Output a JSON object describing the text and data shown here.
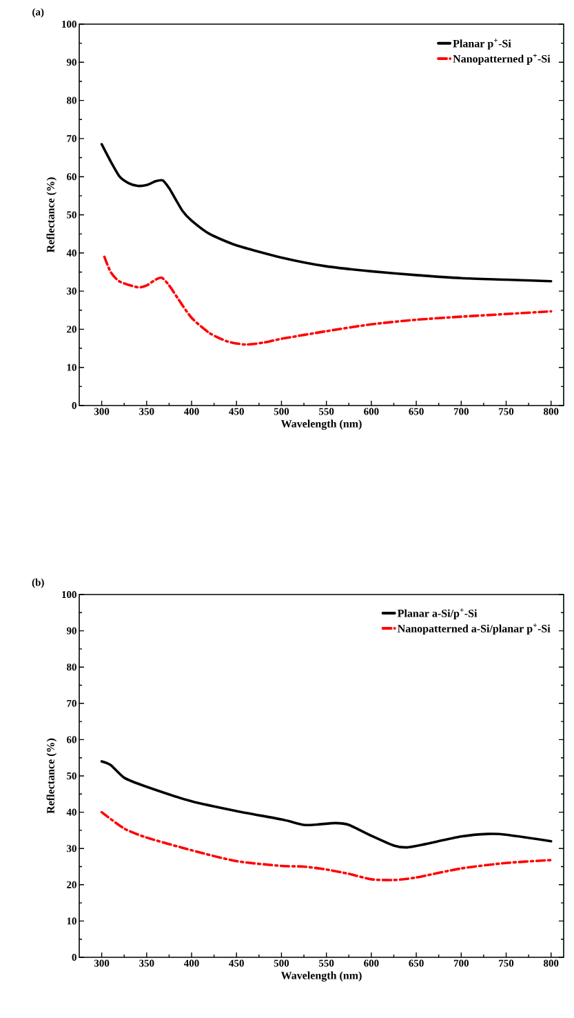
{
  "chart_data": [
    {
      "type": "line",
      "title": "(a)",
      "xlabel": "Wavelength (nm)",
      "ylabel": "Reflectance (%)",
      "xlim": [
        275,
        814
      ],
      "ylim": [
        0,
        100
      ],
      "xticks": [
        300,
        350,
        400,
        450,
        500,
        550,
        600,
        650,
        700,
        750,
        800
      ],
      "yticks": [
        0,
        10,
        20,
        30,
        40,
        50,
        60,
        70,
        80,
        90,
        100
      ],
      "legend": "top right",
      "grid": false,
      "series": [
        {
          "name": "Planar p$^{+}$-Si",
          "color": "#000000",
          "line_style": "solid",
          "x": [
            300,
            310,
            320,
            330,
            340,
            350,
            360,
            368,
            375,
            380,
            390,
            400,
            420,
            450,
            500,
            550,
            600,
            650,
            700,
            750,
            800
          ],
          "values": [
            68.5,
            64,
            60,
            58.3,
            57.6,
            57.8,
            58.8,
            59,
            57,
            55,
            51,
            48.5,
            45,
            42,
            38.8,
            36.5,
            35.2,
            34.2,
            33.4,
            33,
            32.6
          ]
        },
        {
          "name": "Nanopatterned p$^{+}$-Si",
          "color": "#ff0000",
          "line_style": "dashed",
          "x": [
            303,
            310,
            320,
            340,
            350,
            360,
            367,
            375,
            385,
            400,
            420,
            440,
            460,
            480,
            500,
            550,
            600,
            650,
            700,
            750,
            800
          ],
          "values": [
            39,
            35,
            32.5,
            31,
            31.5,
            33,
            33.5,
            31.5,
            28,
            23,
            19,
            16.8,
            16,
            16.5,
            17.5,
            19.5,
            21.3,
            22.5,
            23.3,
            24,
            24.7
          ]
        }
      ]
    },
    {
      "type": "line",
      "title": "(b)",
      "xlabel": "Wavelength (nm)",
      "ylabel": "Reflectance (%)",
      "xlim": [
        275,
        814
      ],
      "ylim": [
        0,
        100
      ],
      "xticks": [
        300,
        350,
        400,
        450,
        500,
        550,
        600,
        650,
        700,
        750,
        800
      ],
      "yticks": [
        0,
        10,
        20,
        30,
        40,
        50,
        60,
        70,
        80,
        90,
        100
      ],
      "legend": "top right",
      "grid": false,
      "series": [
        {
          "name": "Planar a-Si/p$^{+}$-Si",
          "color": "#000000",
          "line_style": "solid",
          "x": [
            300,
            310,
            325,
            350,
            400,
            450,
            500,
            525,
            540,
            560,
            575,
            600,
            625,
            640,
            660,
            700,
            730,
            750,
            800
          ],
          "values": [
            54,
            53,
            49.5,
            47,
            43,
            40.3,
            38,
            36.5,
            36.6,
            37,
            36.5,
            33.5,
            30.8,
            30.3,
            31.2,
            33.3,
            34,
            33.8,
            32
          ]
        },
        {
          "name": "Nanopatterned a-Si/planar p$^{+}$-Si",
          "color": "#ff0000",
          "line_style": "dashed",
          "x": [
            300,
            325,
            350,
            400,
            450,
            500,
            525,
            550,
            575,
            600,
            625,
            650,
            700,
            750,
            800
          ],
          "values": [
            40,
            35.5,
            33,
            29.5,
            26.5,
            25.2,
            25,
            24.2,
            23,
            21.5,
            21.3,
            22,
            24.5,
            26,
            26.8
          ]
        }
      ]
    }
  ]
}
